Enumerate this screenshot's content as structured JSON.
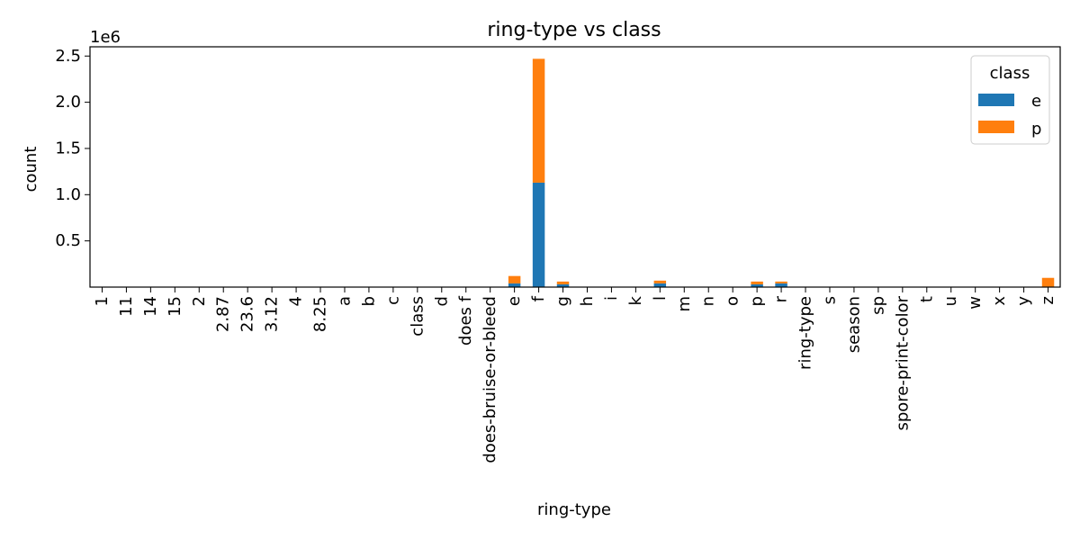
{
  "chart_data": {
    "type": "bar",
    "stacked": true,
    "title": "ring-type vs class",
    "xlabel": "ring-type",
    "ylabel": "count",
    "y_offset_label": "1e6",
    "ylim": [
      0,
      2.6
    ],
    "yticks": [
      "0.5",
      "1.0",
      "1.5",
      "2.0",
      "2.5"
    ],
    "ytick_values": [
      0.5,
      1.0,
      1.5,
      2.0,
      2.5
    ],
    "grid": false,
    "legend": {
      "title": "class",
      "placement": "top-right"
    },
    "categories": [
      "1",
      "11",
      "14",
      "15",
      "2",
      "2.87",
      "23.6",
      "3.12",
      "4",
      "8.25",
      "a",
      "b",
      "c",
      "class",
      "d",
      "does f",
      "does-bruise-or-bleed",
      "e",
      "f",
      "g",
      "h",
      "i",
      "k",
      "l",
      "m",
      "n",
      "o",
      "p",
      "r",
      "ring-type",
      "s",
      "season",
      "sp",
      "spore-print-color",
      "t",
      "u",
      "w",
      "x",
      "y",
      "z"
    ],
    "series": [
      {
        "name": "e",
        "color": "#1f77b4",
        "values": [
          0,
          0,
          0,
          0,
          0,
          0,
          0,
          0,
          0,
          0,
          0,
          0,
          0,
          0,
          0,
          0,
          0,
          0.04,
          1.13,
          0.03,
          0,
          0,
          0,
          0.04,
          0,
          0,
          0,
          0.03,
          0.04,
          0,
          0,
          0,
          0,
          0,
          0,
          0,
          0,
          0,
          0,
          0.0
        ]
      },
      {
        "name": "p",
        "color": "#ff7f0e",
        "values": [
          0,
          0,
          0,
          0,
          0,
          0,
          0,
          0,
          0,
          0,
          0,
          0,
          0,
          0,
          0,
          0,
          0,
          0.08,
          1.34,
          0.03,
          0,
          0,
          0,
          0.03,
          0,
          0,
          0,
          0.03,
          0.02,
          0,
          0,
          0,
          0,
          0,
          0,
          0,
          0,
          0,
          0,
          0.1
        ]
      }
    ]
  }
}
